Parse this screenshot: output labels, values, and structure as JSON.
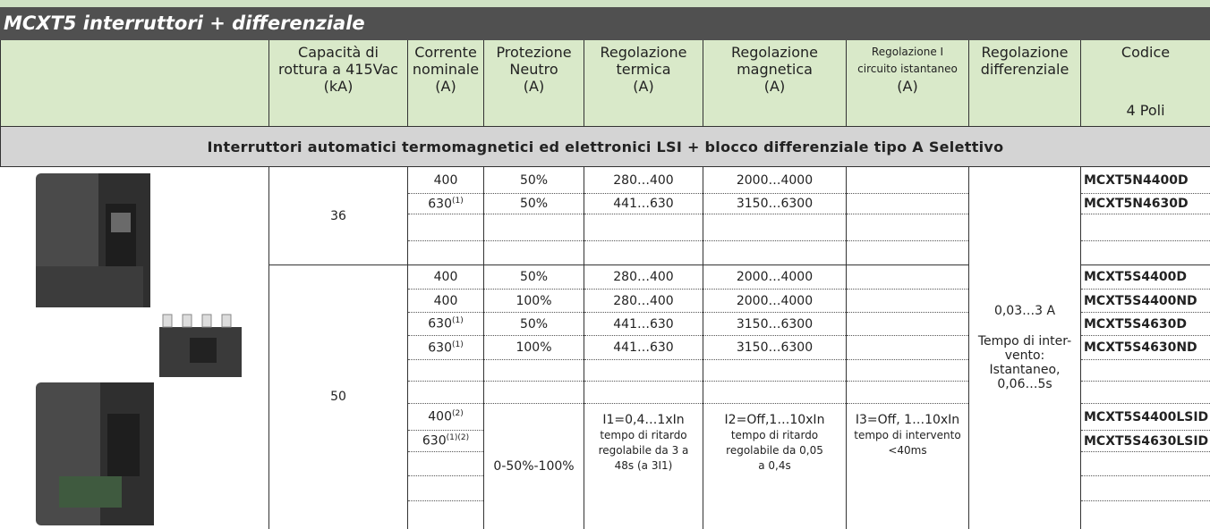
{
  "title": "MCXT5 interruttori + differenziale",
  "header": [
    {
      "lines": [
        "Capacità di",
        "rottura a 415Vac",
        "(kA)"
      ]
    },
    {
      "lines": [
        "Corrente",
        "nominale",
        "(A)"
      ]
    },
    {
      "lines": [
        "Protezione",
        "Neutro",
        "(A)"
      ]
    },
    {
      "lines": [
        "Regolazione",
        "termica",
        "(A)"
      ]
    },
    {
      "lines": [
        "Regolazione",
        "magnetica",
        "(A)"
      ]
    },
    {
      "lines": [
        "Regolazione I",
        "circuito istantaneo",
        "(A)"
      ]
    },
    {
      "lines": [
        "Regolazione",
        "differenziale"
      ]
    },
    {
      "lines": [
        "Codice",
        "4 Poli"
      ]
    }
  ],
  "section": "Interruttori automatici termomagnetici ed elettronici LSI + blocco differenziale tipo A Selettivo",
  "differenziale": [
    "0,03…3 A",
    "Tempo di inter-",
    "vento:",
    "Istantaneo,",
    "0,06…5s"
  ],
  "groups": [
    {
      "capacity": "36",
      "rows": [
        {
          "corrente": "400",
          "protezione": "50%",
          "termica": "280…400",
          "magnetica": "2000…4000",
          "codice": "MCXT5N4400D"
        },
        {
          "corrente": "630",
          "note": "(1)",
          "protezione": "50%",
          "termica": "441…630",
          "magnetica": "3150…6300",
          "codice": "MCXT5N4630D"
        }
      ]
    },
    {
      "capacity": "50",
      "rows": [
        {
          "corrente": "400",
          "protezione": "50%",
          "termica": "280…400",
          "magnetica": "2000…4000",
          "codice": "MCXT5S4400D"
        },
        {
          "corrente": "400",
          "protezione": "100%",
          "termica": "280…400",
          "magnetica": "2000…4000",
          "codice": "MCXT5S4400ND"
        },
        {
          "corrente": "630",
          "note": "(1)",
          "protezione": "50%",
          "termica": "441…630",
          "magnetica": "3150…6300",
          "codice": "MCXT5S4630D"
        },
        {
          "corrente": "630",
          "note": "(1)",
          "protezione": "100%",
          "termica": "441…630",
          "magnetica": "3150…6300",
          "codice": "MCXT5S4630ND"
        }
      ],
      "lsi_rows": [
        {
          "corrente": "400",
          "note": "(2)",
          "codice": "MCXT5S4400LSID"
        },
        {
          "corrente": "630",
          "note": "(1)(2)",
          "codice": "MCXT5S4630LSID"
        }
      ],
      "lsi": {
        "protezione": "0-50%-100%",
        "termica": [
          "I1=0,4…1xIn",
          "tempo di ritardo",
          "regolabile da 3 a",
          "48s (a 3I1)"
        ],
        "magnetica": [
          "I2=Off,1…10xIn",
          "tempo di ritardo",
          "regolabile da 0,05",
          "a 0,4s"
        ],
        "istantaneo": [
          "I3=Off, 1…10xIn",
          "tempo di intervento",
          "<40ms"
        ]
      }
    }
  ]
}
